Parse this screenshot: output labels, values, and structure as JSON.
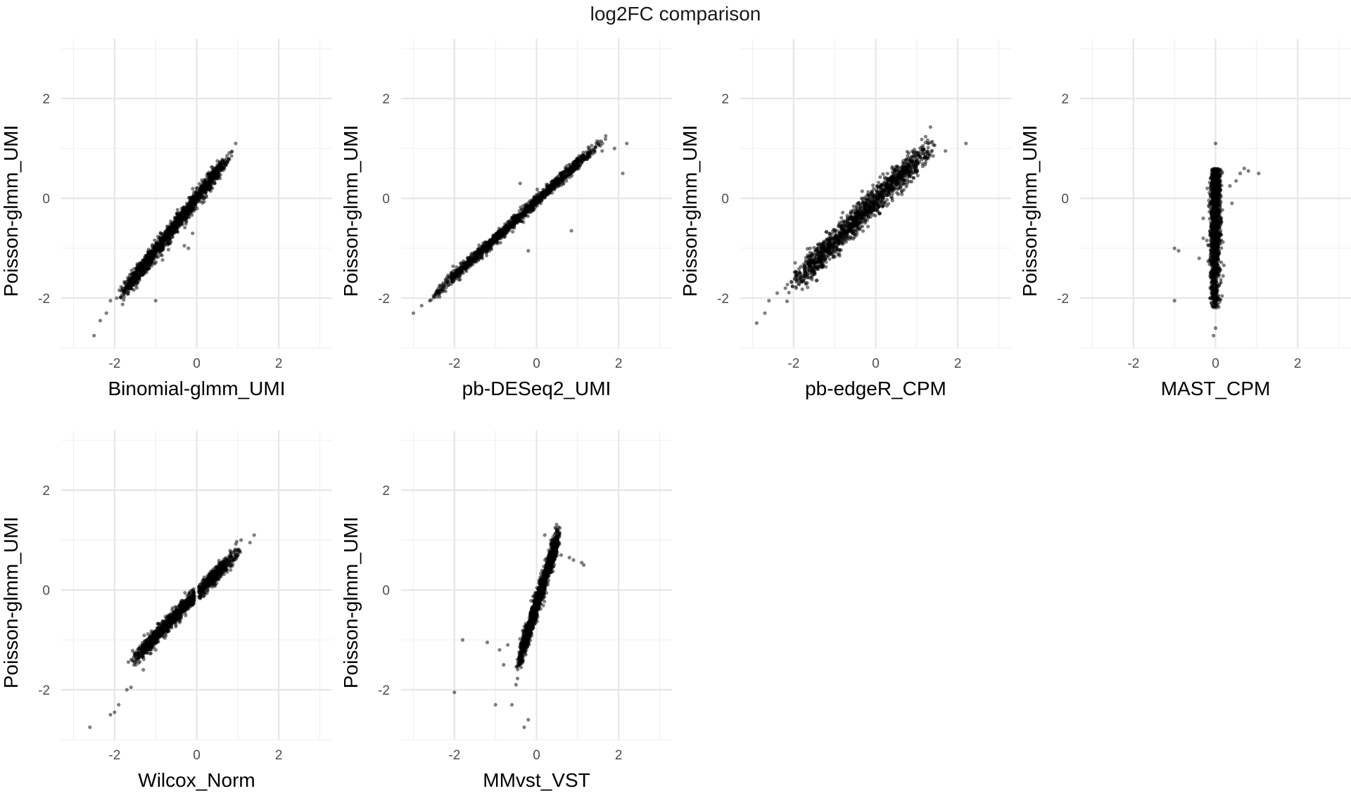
{
  "figure": {
    "title": "log2FC comparison"
  },
  "chart_data": [
    {
      "type": "scatter",
      "panel": "Binomial-glmm_UMI",
      "xlabel": "Binomial-glmm_UMI",
      "ylabel": "Poisson-glmm_UMI",
      "xlim": [
        -3.3,
        3.3
      ],
      "ylim": [
        -3.0,
        3.2
      ],
      "xticks": [
        "-2",
        "0",
        "2"
      ],
      "yticks": [
        "-2",
        "0",
        "2"
      ],
      "grid": true,
      "points": [
        [
          -2.5,
          -2.75
        ],
        [
          -2.35,
          -2.45
        ],
        [
          -2.2,
          -2.3
        ],
        [
          -2.1,
          -2.05
        ],
        [
          -1.95,
          -2.0
        ],
        [
          -1.8,
          -1.8
        ],
        [
          -1.55,
          -1.65
        ],
        [
          -1.4,
          -1.45
        ],
        [
          -1.2,
          -1.25
        ],
        [
          -1.0,
          -1.05
        ],
        [
          -0.8,
          -0.85
        ],
        [
          -0.6,
          -0.65
        ],
        [
          -0.4,
          -0.45
        ],
        [
          -0.2,
          -0.2
        ],
        [
          0.0,
          0.0
        ],
        [
          0.2,
          0.25
        ],
        [
          0.45,
          0.5
        ],
        [
          0.65,
          0.7
        ],
        [
          0.85,
          0.85
        ],
        [
          0.95,
          1.1
        ],
        [
          -0.3,
          -0.95
        ],
        [
          -0.2,
          -1.0
        ],
        [
          -1.0,
          -2.05
        ],
        [
          -0.5,
          -0.6
        ],
        [
          -0.1,
          -0.7
        ]
      ],
      "cloud": {
        "x_range": [
          -2.0,
          0.9
        ],
        "slope": 1.05,
        "intercept": 0.0,
        "spread": 0.09
      }
    },
    {
      "type": "scatter",
      "panel": "pb-DESeq2_UMI",
      "xlabel": "pb-DESeq2_UMI",
      "ylabel": "Poisson-glmm_UMI",
      "xlim": [
        -3.3,
        3.3
      ],
      "ylim": [
        -3.0,
        3.2
      ],
      "xticks": [
        "-2",
        "0",
        "2"
      ],
      "yticks": [
        "-2",
        "0",
        "2"
      ],
      "grid": true,
      "points": [
        [
          -3.0,
          -2.3
        ],
        [
          -2.8,
          -2.15
        ],
        [
          -2.6,
          -2.05
        ],
        [
          -2.3,
          -1.85
        ],
        [
          -2.0,
          -1.6
        ],
        [
          -1.6,
          -1.3
        ],
        [
          -1.2,
          -1.0
        ],
        [
          -0.8,
          -0.65
        ],
        [
          -0.4,
          -0.35
        ],
        [
          0.0,
          0.0
        ],
        [
          0.4,
          0.25
        ],
        [
          0.8,
          0.55
        ],
        [
          1.2,
          0.85
        ],
        [
          1.6,
          0.95
        ],
        [
          1.9,
          1.0
        ],
        [
          2.2,
          1.1
        ],
        [
          2.1,
          0.5
        ],
        [
          -0.4,
          0.3
        ],
        [
          0.85,
          -0.65
        ],
        [
          -0.2,
          -1.05
        ]
      ],
      "cloud": {
        "x_range": [
          -2.6,
          1.7
        ],
        "slope": 0.75,
        "intercept": -0.05,
        "spread": 0.06
      }
    },
    {
      "type": "scatter",
      "panel": "pb-edgeR_CPM",
      "xlabel": "pb-edgeR_CPM",
      "ylabel": "Poisson-glmm_UMI",
      "xlim": [
        -3.3,
        3.3
      ],
      "ylim": [
        -3.0,
        3.2
      ],
      "xticks": [
        "-2",
        "0",
        "2"
      ],
      "yticks": [
        "-2",
        "0",
        "2"
      ],
      "grid": true,
      "points": [
        [
          -2.9,
          -2.5
        ],
        [
          -2.7,
          -2.3
        ],
        [
          -2.6,
          -2.05
        ],
        [
          -2.4,
          -1.9
        ],
        [
          -2.2,
          -1.8
        ],
        [
          -1.9,
          -1.6
        ],
        [
          -1.5,
          -1.3
        ],
        [
          -1.0,
          -0.9
        ],
        [
          -0.5,
          -0.5
        ],
        [
          0.0,
          -0.05
        ],
        [
          0.5,
          0.3
        ],
        [
          1.0,
          0.6
        ],
        [
          1.4,
          0.85
        ],
        [
          1.7,
          0.95
        ],
        [
          2.2,
          1.1
        ],
        [
          -1.6,
          -1.0
        ],
        [
          -0.2,
          -0.3
        ]
      ],
      "cloud": {
        "x_range": [
          -2.2,
          1.5
        ],
        "slope": 0.82,
        "intercept": -0.05,
        "spread": 0.14
      }
    },
    {
      "type": "scatter",
      "panel": "MAST_CPM",
      "xlabel": "MAST_CPM",
      "ylabel": "Poisson-glmm_UMI",
      "xlim": [
        -3.3,
        3.3
      ],
      "ylim": [
        -3.0,
        3.2
      ],
      "xticks": [
        "-2",
        "0",
        "2"
      ],
      "yticks": [
        "-2",
        "0",
        "2"
      ],
      "grid": true,
      "points": [
        [
          -1.0,
          -1.0
        ],
        [
          -0.9,
          -1.05
        ],
        [
          -1.0,
          -2.05
        ],
        [
          -0.4,
          -1.2
        ],
        [
          -0.3,
          -0.8
        ],
        [
          -0.05,
          -2.75
        ],
        [
          0.0,
          -2.6
        ],
        [
          -0.1,
          -2.1
        ],
        [
          0.0,
          1.1
        ],
        [
          0.6,
          0.5
        ],
        [
          0.7,
          0.6
        ],
        [
          0.8,
          0.55
        ],
        [
          1.05,
          0.5
        ],
        [
          0.5,
          0.35
        ],
        [
          0.35,
          0.25
        ],
        [
          -0.3,
          -0.4
        ],
        [
          0.4,
          -0.1
        ],
        [
          -0.2,
          0.2
        ]
      ],
      "cloud": {
        "x_range": [
          -0.3,
          0.3
        ],
        "y_range": [
          -2.2,
          0.6
        ],
        "type": "vertical",
        "spread": 0.06
      }
    },
    {
      "type": "scatter",
      "panel": "Wilcox_Norm",
      "xlabel": "Wilcox_Norm",
      "ylabel": "Poisson-glmm_UMI",
      "xlim": [
        -3.3,
        3.3
      ],
      "ylim": [
        -3.0,
        3.2
      ],
      "xticks": [
        "-2",
        "0",
        "2"
      ],
      "yticks": [
        "-2",
        "0",
        "2"
      ],
      "grid": true,
      "points": [
        [
          -2.6,
          -2.75
        ],
        [
          -2.1,
          -2.5
        ],
        [
          -2.0,
          -2.45
        ],
        [
          -1.9,
          -2.3
        ],
        [
          -1.7,
          -2.0
        ],
        [
          -1.6,
          -1.95
        ],
        [
          -1.3,
          -1.6
        ],
        [
          -1.0,
          -1.2
        ],
        [
          -0.7,
          -0.8
        ],
        [
          -0.4,
          -0.5
        ],
        [
          -0.1,
          -0.3
        ],
        [
          0.1,
          0.0
        ],
        [
          0.4,
          0.2
        ],
        [
          0.7,
          0.5
        ],
        [
          1.0,
          0.7
        ],
        [
          1.3,
          0.95
        ],
        [
          1.4,
          1.1
        ]
      ],
      "cloud": {
        "x_range": [
          -1.7,
          1.1
        ],
        "slope": 0.85,
        "intercept": -0.08,
        "spread": 0.08,
        "gap": [
          -0.05,
          0.05
        ]
      }
    },
    {
      "type": "scatter",
      "panel": "MMvst_VST",
      "xlabel": "MMvst_VST",
      "ylabel": "Poisson-glmm_UMI",
      "xlim": [
        -3.3,
        3.3
      ],
      "ylim": [
        -3.0,
        3.2
      ],
      "xticks": [
        "-2",
        "0",
        "2"
      ],
      "yticks": [
        "-2",
        "0",
        "2"
      ],
      "grid": true,
      "points": [
        [
          -2.0,
          -2.05
        ],
        [
          -1.8,
          -1.0
        ],
        [
          -1.2,
          -1.05
        ],
        [
          -1.0,
          -2.3
        ],
        [
          -0.9,
          -1.2
        ],
        [
          -0.8,
          -1.5
        ],
        [
          -0.7,
          -1.1
        ],
        [
          -0.5,
          -1.9
        ],
        [
          -0.6,
          -2.3
        ],
        [
          -0.2,
          -2.6
        ],
        [
          -0.3,
          -2.75
        ],
        [
          0.2,
          1.1
        ],
        [
          0.35,
          1.0
        ],
        [
          0.6,
          0.7
        ],
        [
          0.8,
          0.65
        ],
        [
          1.1,
          0.55
        ],
        [
          1.15,
          0.5
        ],
        [
          0.9,
          0.6
        ],
        [
          0.5,
          0.9
        ],
        [
          0.3,
          0.8
        ]
      ],
      "cloud": {
        "x_range": [
          -0.5,
          0.6
        ],
        "slope": 2.6,
        "intercept": -0.3,
        "spread": 0.13
      }
    }
  ]
}
